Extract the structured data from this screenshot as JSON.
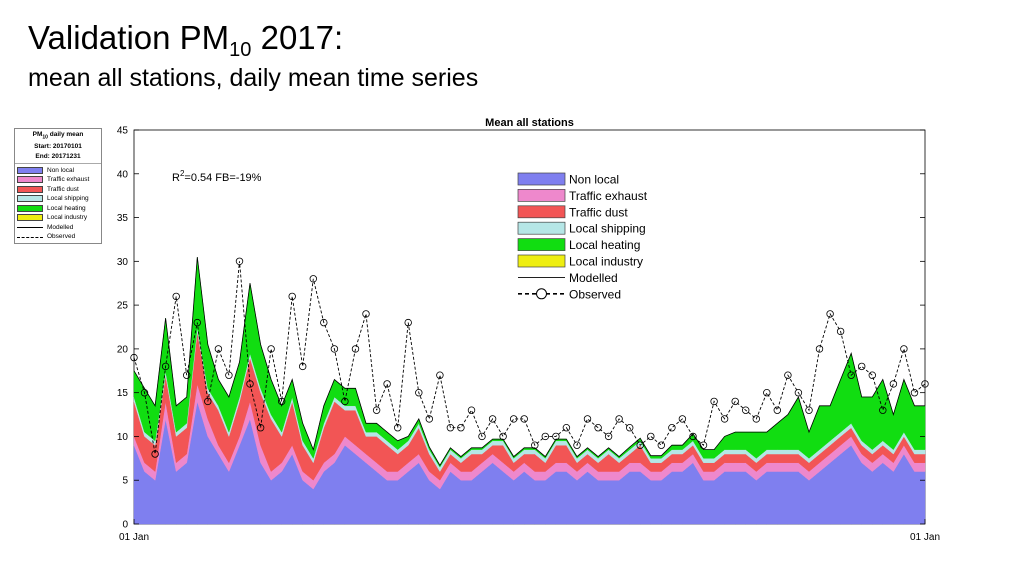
{
  "slide": {
    "title_main": "Validation PM",
    "title_sub": "10",
    "title_year": " 2017:",
    "subtitle": "mean all stations, daily mean time series"
  },
  "info_box": {
    "header_pre": "PM",
    "header_sub": "10",
    "header_post": " daily mean",
    "start": "Start: 20170101",
    "end": "End:  20171231"
  },
  "chart_data": {
    "type": "area",
    "title": "Mean all stations",
    "annotation": "R²=0.54 FB=-19%",
    "annotation_pre": "R",
    "annotation_sup": "2",
    "annotation_post": "=0.54 FB=-19%",
    "x_tick_labels": [
      "01 Jan",
      "01 Jan"
    ],
    "xlim": [
      "2017-01-01",
      "2018-01-01"
    ],
    "ylim": [
      0,
      45
    ],
    "y_ticks": [
      0,
      5,
      10,
      15,
      20,
      25,
      30,
      35,
      40,
      45
    ],
    "grid": false,
    "legend_placement": "upper-center",
    "sample_step_days": 5,
    "series": [
      {
        "name": "Non local",
        "color": "#7f7fef",
        "values": [
          9,
          6,
          5,
          12,
          6,
          7,
          14,
          10,
          8,
          6,
          9,
          12,
          7,
          5,
          6,
          8,
          5,
          4,
          6,
          7,
          9,
          8,
          7,
          6,
          5,
          5,
          6,
          7,
          5,
          4,
          6,
          5,
          5,
          6,
          7,
          6,
          5,
          6,
          5,
          5,
          6,
          6,
          5,
          6,
          5,
          5,
          5,
          6,
          6,
          5,
          5,
          6,
          6,
          7,
          5,
          5,
          6,
          6,
          6,
          5,
          6,
          6,
          6,
          6,
          5,
          6,
          7,
          8,
          9,
          7,
          6,
          7,
          6,
          8,
          6,
          6
        ]
      },
      {
        "name": "Traffic exhaust",
        "color": "#ee88cc",
        "values": [
          1,
          1,
          1,
          2,
          1,
          1,
          2,
          2,
          1,
          1,
          1,
          2,
          2,
          1,
          1,
          1,
          1,
          1,
          1,
          1,
          1,
          1,
          1,
          1,
          1,
          1,
          1,
          1,
          1,
          1,
          1,
          1,
          1,
          1,
          1,
          1,
          1,
          1,
          1,
          1,
          1,
          1,
          1,
          1,
          1,
          1,
          1,
          1,
          1,
          1,
          1,
          1,
          1,
          1,
          1,
          1,
          1,
          1,
          1,
          1,
          1,
          1,
          1,
          1,
          1,
          1,
          1,
          1,
          1,
          1,
          1,
          1,
          1,
          1,
          1,
          1
        ]
      },
      {
        "name": "Traffic dust",
        "color": "#f25555",
        "values": [
          4,
          3,
          3,
          3,
          3,
          3,
          6,
          3,
          4,
          3,
          4,
          5,
          6,
          6,
          3,
          5,
          3,
          2,
          4,
          6,
          3,
          4,
          2,
          3,
          3,
          2,
          2,
          3,
          2,
          1,
          1,
          1,
          2,
          1,
          1,
          2,
          1,
          1,
          2,
          1,
          2,
          2,
          1,
          1,
          1,
          2,
          1,
          1,
          2,
          1,
          1,
          1,
          1,
          1,
          1,
          1,
          1,
          1,
          1,
          1,
          1,
          1,
          1,
          1,
          1,
          1,
          1,
          1,
          1,
          1,
          1,
          1,
          1,
          1,
          1,
          1
        ]
      },
      {
        "name": "Local shipping",
        "color": "#b5e6e6",
        "values": [
          0.5,
          0.5,
          0.5,
          0.5,
          0.5,
          0.5,
          0.5,
          0.5,
          0.5,
          0.5,
          0.5,
          0.5,
          0.5,
          0.5,
          0.5,
          0.5,
          0.5,
          0.5,
          0.5,
          0.5,
          0.5,
          0.5,
          0.5,
          0.5,
          0.5,
          0.5,
          0.5,
          0.5,
          0.5,
          0.5,
          0.5,
          0.5,
          0.5,
          0.5,
          0.5,
          0.5,
          0.5,
          0.5,
          0.5,
          0.5,
          0.5,
          0.5,
          0.5,
          0.5,
          0.5,
          0.5,
          0.5,
          0.5,
          0.5,
          0.5,
          0.5,
          0.5,
          0.5,
          0.5,
          0.5,
          0.5,
          0.5,
          0.5,
          0.5,
          0.5,
          0.5,
          0.5,
          0.5,
          0.5,
          0.5,
          0.5,
          0.5,
          0.5,
          0.5,
          0.5,
          0.5,
          0.5,
          0.5,
          0.5,
          0.5,
          0.5
        ]
      },
      {
        "name": "Local heating",
        "color": "#11dd11",
        "values": [
          3,
          5,
          4,
          6,
          3,
          3,
          8,
          5,
          3,
          4,
          4,
          8,
          5,
          4,
          3,
          2,
          2,
          1,
          2,
          2,
          2,
          2,
          1,
          1,
          1,
          1,
          0.5,
          0.5,
          0.3,
          0.2,
          0.2,
          0.2,
          0.2,
          0.2,
          0.2,
          0.2,
          0.2,
          0.2,
          0.2,
          0.2,
          0.2,
          0.2,
          0.2,
          0.2,
          0.2,
          0.2,
          0.2,
          0.3,
          0.3,
          0.3,
          0.3,
          0.5,
          0.5,
          0.8,
          1,
          1,
          1.5,
          2,
          2,
          3,
          2,
          3,
          4,
          6,
          3,
          5,
          4,
          6,
          8,
          5,
          6,
          7,
          4,
          6,
          5,
          5
        ]
      },
      {
        "name": "Local industry",
        "color": "#eeee11",
        "values": []
      },
      {
        "name": "Modelled",
        "color": "#000000",
        "style": "line"
      },
      {
        "name": "Observed",
        "color": "#000000",
        "style": "dashed-circle",
        "values": [
          19,
          15,
          8,
          18,
          26,
          17,
          23,
          14,
          20,
          17,
          30,
          16,
          11,
          20,
          14,
          26,
          18,
          28,
          23,
          20,
          14,
          20,
          24,
          13,
          16,
          11,
          23,
          15,
          12,
          17,
          11,
          11,
          13,
          10,
          12,
          10,
          12,
          12,
          9,
          10,
          10,
          11,
          9,
          12,
          11,
          10,
          12,
          11,
          9,
          10,
          9,
          11,
          12,
          10,
          9,
          14,
          12,
          14,
          13,
          12,
          15,
          13,
          17,
          15,
          13,
          20,
          24,
          22,
          17,
          18,
          17,
          13,
          16,
          20,
          15,
          16
        ]
      }
    ]
  }
}
